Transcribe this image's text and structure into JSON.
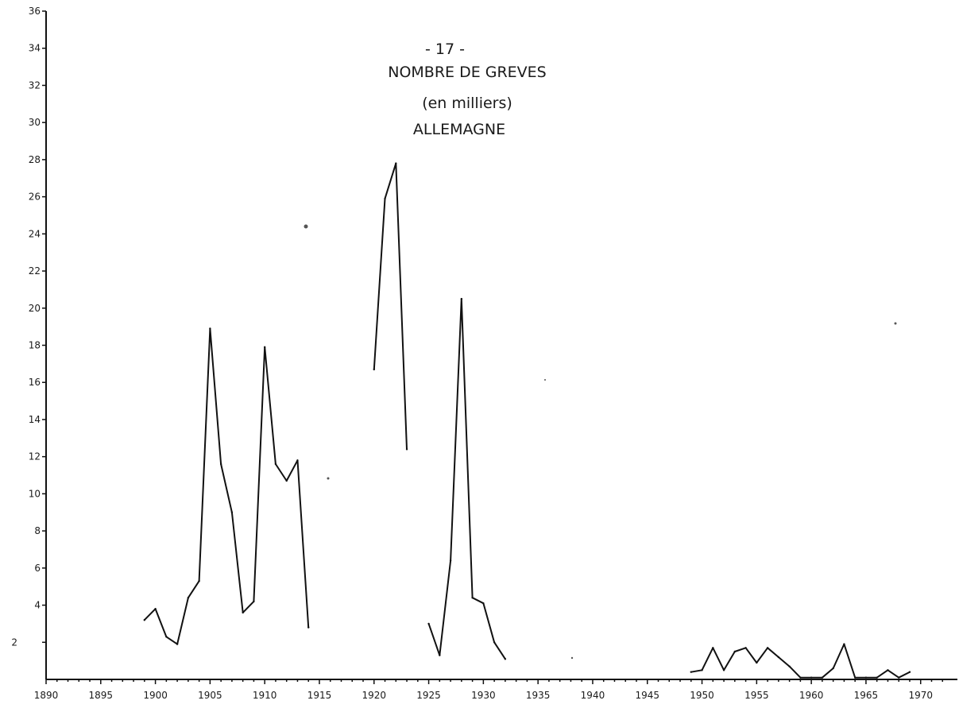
{
  "chart_data": {
    "type": "line",
    "title": "- 17 -",
    "title_lines": [
      "- 17 -",
      "NOMBRE DE GREVES",
      "(en milliers)",
      "ALLEMAGNE"
    ],
    "xlabel": "",
    "ylabel": "",
    "xlim": [
      1890,
      1973
    ],
    "ylim": [
      0,
      36
    ],
    "x_ticks": [
      1890,
      1895,
      1900,
      1905,
      1910,
      1915,
      1920,
      1925,
      1930,
      1935,
      1940,
      1945,
      1950,
      1955,
      1960,
      1965,
      1970
    ],
    "x_tick_labels": [
      "1890",
      "1895",
      "1900",
      "1905",
      "1910",
      "1915",
      "1920",
      "1925",
      "1930",
      "1935",
      "1940",
      "1945",
      "1950",
      "1955",
      "1960",
      "1965",
      "1970"
    ],
    "y_ticks": [
      2,
      4,
      6,
      8,
      10,
      12,
      14,
      16,
      18,
      20,
      22,
      24,
      26,
      28,
      30,
      32,
      34,
      36
    ],
    "y_tick_labels": [
      "2",
      "4",
      "6",
      "8",
      "10",
      "12",
      "14",
      "16",
      "18",
      "20",
      "22",
      "24",
      "26",
      "28",
      "30",
      "32",
      "34",
      "36"
    ],
    "grid": false,
    "series": [
      {
        "segments": [
          {
            "x": [
              1899,
              1900,
              1901,
              1902,
              1903,
              1904,
              1905,
              1906,
              1907,
              1908,
              1909,
              1910,
              1911,
              1912,
              1913,
              1914
            ],
            "y": [
              3.2,
              3.8,
              2.3,
              1.9,
              4.4,
              5.3,
              18.9,
              11.6,
              9.0,
              3.6,
              4.2,
              17.9,
              11.6,
              10.7,
              11.8,
              2.8
            ]
          },
          {
            "x": [
              1920,
              1921,
              1922,
              1923
            ],
            "y": [
              16.7,
              25.9,
              27.8,
              12.4
            ]
          },
          {
            "x": [
              1925,
              1926,
              1927,
              1928,
              1929,
              1930,
              1931,
              1932
            ],
            "y": [
              3.0,
              1.3,
              6.4,
              20.5,
              4.4,
              4.1,
              2.0,
              1.1
            ]
          },
          {
            "x": [
              1949,
              1950,
              1951,
              1952,
              1953,
              1954,
              1955,
              1956,
              1957,
              1958,
              1959,
              1960,
              1961,
              1962,
              1963,
              1964,
              1965,
              1966,
              1967,
              1968,
              1969
            ],
            "y": [
              0.4,
              0.5,
              1.7,
              0.5,
              1.5,
              1.7,
              0.9,
              1.7,
              1.2,
              0.7,
              0.1,
              0.1,
              0.1,
              0.6,
              1.9,
              0.1,
              0.1,
              0.1,
              0.5,
              0.1,
              0.4
            ]
          }
        ]
      }
    ]
  }
}
